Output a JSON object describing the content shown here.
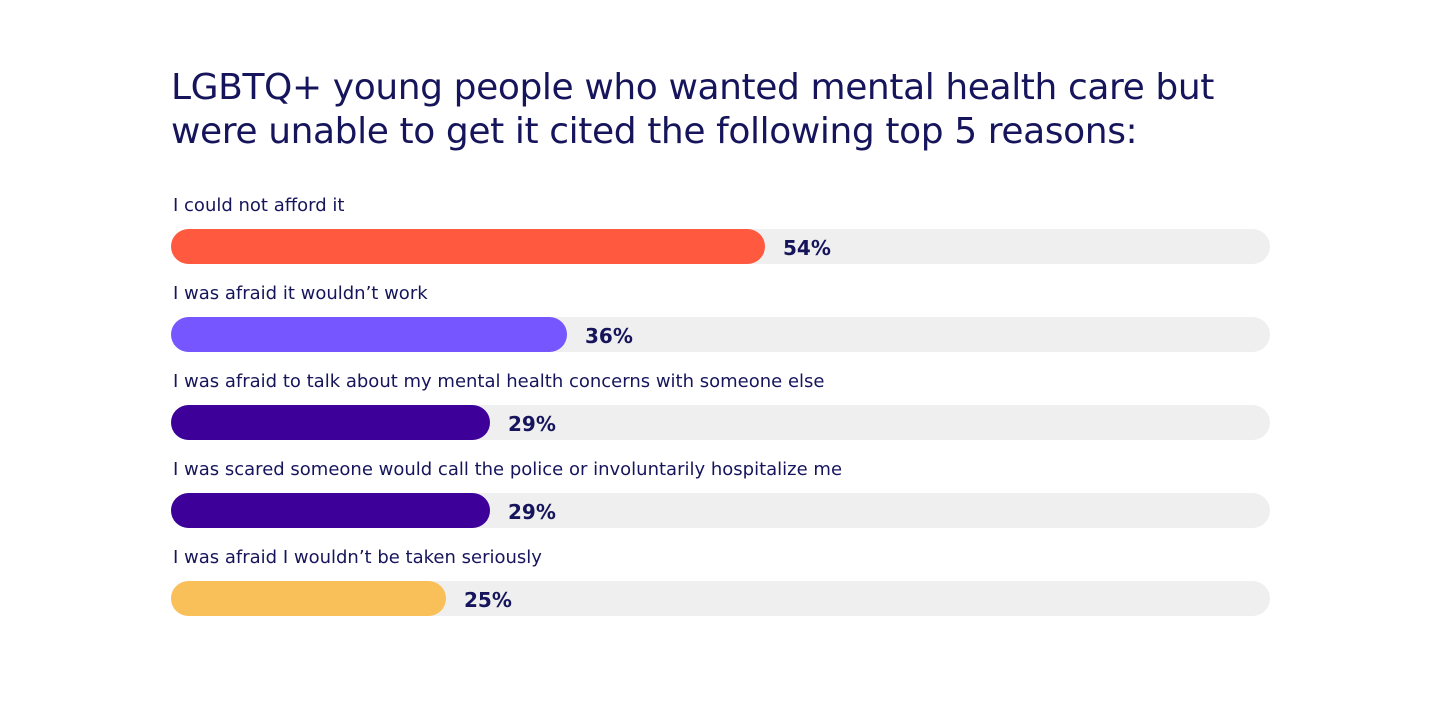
{
  "chart_data": {
    "type": "bar",
    "orientation": "horizontal",
    "title": "LGBTQ+ young people who wanted mental health care but were unable to get it cited the following top 5 reasons:",
    "categories": [
      "I could not afford it",
      "I was afraid it wouldn’t work",
      "I was afraid to talk about my mental health concerns with someone else",
      "I was scared someone would call the police or involuntarily hospitalize me",
      "I was afraid I wouldn’t be taken seriously"
    ],
    "values": [
      54,
      36,
      29,
      29,
      25
    ],
    "value_labels": [
      "54%",
      "36%",
      "29%",
      "29%",
      "25%"
    ],
    "colors": [
      "#ff5a40",
      "#7556ff",
      "#3d0099",
      "#3d0099",
      "#f9c05a"
    ],
    "track_color": "#efefef",
    "xlim": [
      0,
      100
    ],
    "grid": false
  }
}
